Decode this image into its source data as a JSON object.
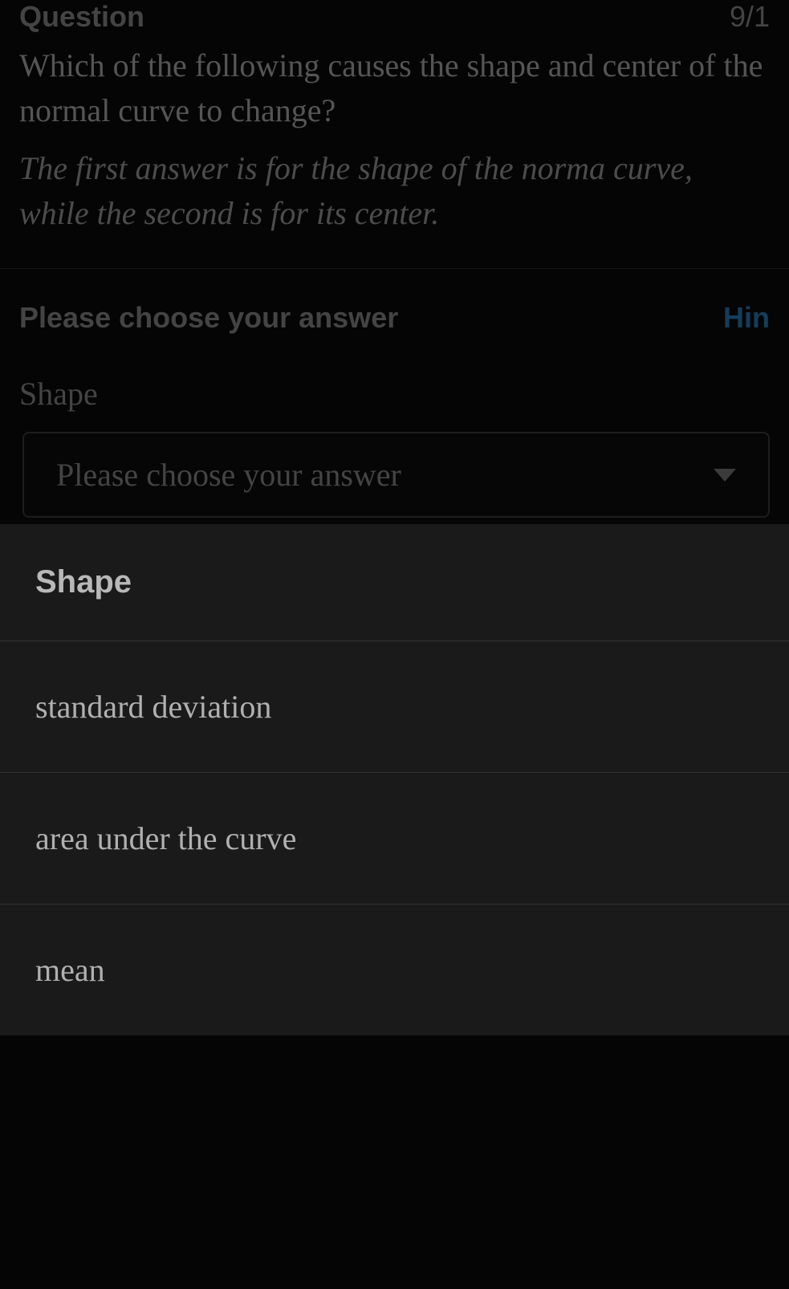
{
  "header": {
    "question_label": "Question",
    "counter": "9/1",
    "question_text": "Which of the following causes the shape and center of the normal curve to change?",
    "hint_text": "The first answer is for the shape of the norma curve, while the second is for its center."
  },
  "answer": {
    "prompt": "Please choose your answer",
    "hint_link": "Hin",
    "field_label": "Shape",
    "dropdown_placeholder": "Please choose your answer"
  },
  "dropdown": {
    "header": "Shape",
    "options": [
      "standard deviation",
      "area under the curve",
      "mean"
    ]
  },
  "colors": {
    "background": "#0a0a0a",
    "text_muted": "#888",
    "text_light": "#aaa",
    "link": "#2a7bb8",
    "border": "#3a3a3a",
    "menu_bg": "#1a1a1a",
    "divider": "#333"
  }
}
